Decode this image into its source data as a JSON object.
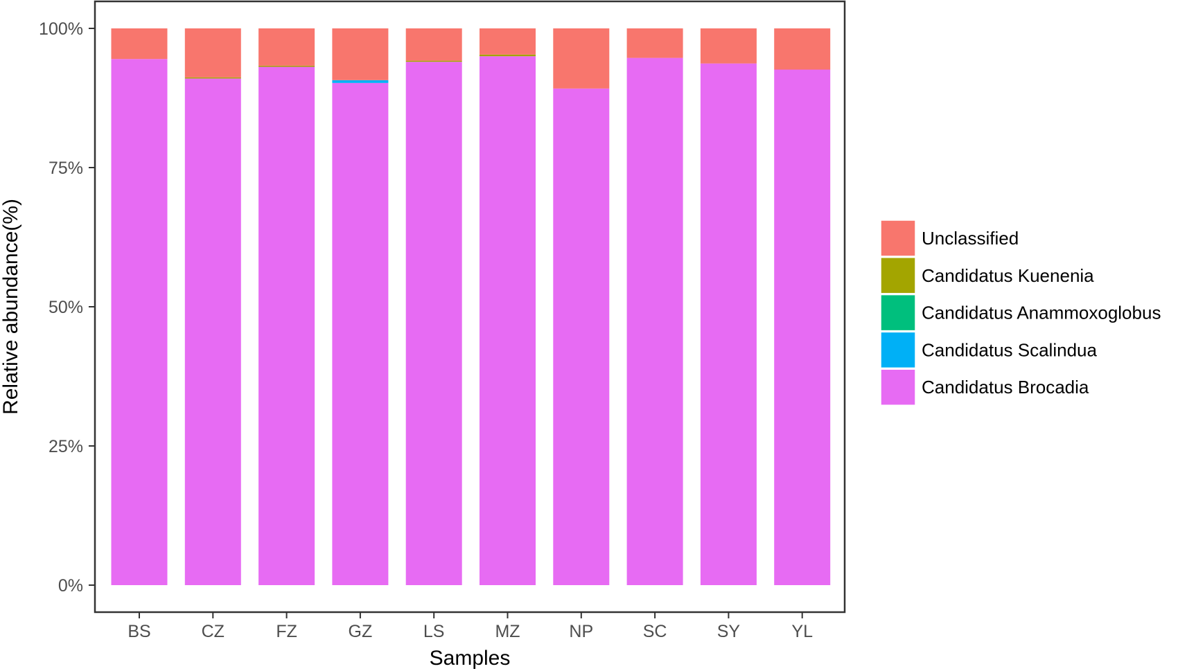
{
  "chart_data": {
    "type": "bar",
    "stacked": true,
    "percent": true,
    "xlabel": "Samples",
    "ylabel": "Relative abundance(%)",
    "ylim": [
      0,
      100
    ],
    "yticks": [
      0,
      25,
      50,
      75,
      100
    ],
    "ytick_labels": [
      "0%",
      "25%",
      "50%",
      "75%",
      "100%"
    ],
    "grid": false,
    "legend_position": "right",
    "categories": [
      "BS",
      "CZ",
      "FZ",
      "GZ",
      "LS",
      "MZ",
      "NP",
      "SC",
      "SY",
      "YL"
    ],
    "series": [
      {
        "name": "Candidatus Brocadia",
        "color": "#E76BF3",
        "values": [
          94.5,
          91.0,
          93.1,
          90.2,
          94.0,
          95.0,
          89.2,
          94.7,
          93.7,
          92.6
        ]
      },
      {
        "name": "Candidatus Scalindua",
        "color": "#00B0F6",
        "values": [
          0.0,
          0.0,
          0.0,
          0.5,
          0.0,
          0.0,
          0.0,
          0.0,
          0.0,
          0.0
        ]
      },
      {
        "name": "Candidatus Anammoxoglobus",
        "color": "#00BF7D",
        "values": [
          0.0,
          0.0,
          0.0,
          0.0,
          0.0,
          0.0,
          0.0,
          0.0,
          0.0,
          0.0
        ]
      },
      {
        "name": "Candidatus Kuenenia",
        "color": "#A3A500",
        "values": [
          0.0,
          0.2,
          0.2,
          0.0,
          0.2,
          0.3,
          0.0,
          0.0,
          0.0,
          0.0
        ]
      },
      {
        "name": "Unclassified",
        "color": "#F8766D",
        "values": [
          5.5,
          8.8,
          6.7,
          9.3,
          5.8,
          4.7,
          10.8,
          5.3,
          6.3,
          7.4
        ]
      }
    ],
    "legend_order": [
      "Unclassified",
      "Candidatus Kuenenia",
      "Candidatus Anammoxoglobus",
      "Candidatus Scalindua",
      "Candidatus Brocadia"
    ]
  }
}
